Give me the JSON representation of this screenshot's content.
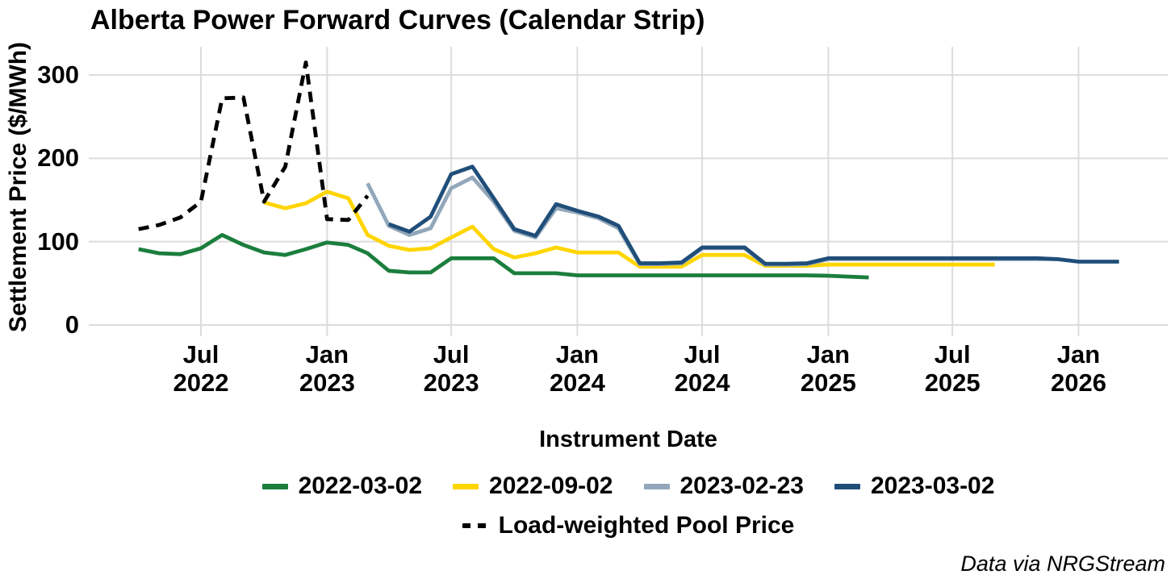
{
  "caption": "Data via NRGStream",
  "colors": {
    "background": "#ffffff",
    "grid": "#dcdcdc",
    "text": "#000000",
    "series_2022_03_02": "#1b7e3d",
    "series_2022_09_02": "#ffd500",
    "series_2023_02_23": "#92a7ba",
    "series_2023_03_02": "#1f4e79",
    "pool_price": "#000000"
  },
  "chart_data": {
    "type": "line",
    "title": "Alberta Power Forward Curves (Calendar Strip)",
    "xlabel": "Instrument Date",
    "ylabel": "Settlement Price ($/MWh)",
    "grid": true,
    "legend_position": "bottom",
    "y_axis": {
      "ticks": [
        0,
        100,
        200,
        300
      ],
      "range": [
        0,
        333
      ]
    },
    "x_axis": {
      "range": [
        "2022-04",
        "2026-04"
      ],
      "ticks": [
        {
          "date": "2022-07",
          "label": "Jul\n2022"
        },
        {
          "date": "2023-01",
          "label": "Jan\n2023"
        },
        {
          "date": "2023-07",
          "label": "Jul\n2023"
        },
        {
          "date": "2024-01",
          "label": "Jan\n2024"
        },
        {
          "date": "2024-07",
          "label": "Jul\n2024"
        },
        {
          "date": "2025-01",
          "label": "Jan\n2025"
        },
        {
          "date": "2025-07",
          "label": "Jul\n2025"
        },
        {
          "date": "2026-01",
          "label": "Jan\n2026"
        }
      ]
    },
    "legend_rows": [
      [
        "2022-03-02",
        "2022-09-02",
        "2023-02-23",
        "2023-03-02"
      ],
      [
        "Load-weighted Pool Price"
      ]
    ],
    "series": [
      {
        "name": "2022-03-02",
        "color": "#1b7e3d",
        "dash": false,
        "points": [
          [
            "2022-04",
            91
          ],
          [
            "2022-05",
            86
          ],
          [
            "2022-06",
            85
          ],
          [
            "2022-07",
            92
          ],
          [
            "2022-08",
            108
          ],
          [
            "2022-09",
            96
          ],
          [
            "2022-10",
            87
          ],
          [
            "2022-11",
            84
          ],
          [
            "2022-12",
            91
          ],
          [
            "2023-01",
            99
          ],
          [
            "2023-02",
            96
          ],
          [
            "2023-03",
            86
          ],
          [
            "2023-04",
            65
          ],
          [
            "2023-05",
            63
          ],
          [
            "2023-06",
            63
          ],
          [
            "2023-07",
            80
          ],
          [
            "2023-08",
            80
          ],
          [
            "2023-09",
            80
          ],
          [
            "2023-10",
            62
          ],
          [
            "2023-11",
            62
          ],
          [
            "2023-12",
            62
          ],
          [
            "2024-01",
            59.5
          ],
          [
            "2024-02",
            59.5
          ],
          [
            "2024-03",
            59.5
          ],
          [
            "2024-04",
            59.5
          ],
          [
            "2024-05",
            59.5
          ],
          [
            "2024-06",
            59.5
          ],
          [
            "2024-07",
            59.5
          ],
          [
            "2024-08",
            59.5
          ],
          [
            "2024-09",
            59.5
          ],
          [
            "2024-10",
            59.5
          ],
          [
            "2024-11",
            59.5
          ],
          [
            "2024-12",
            59.5
          ],
          [
            "2025-01",
            59
          ],
          [
            "2025-02",
            58
          ],
          [
            "2025-03",
            57
          ]
        ]
      },
      {
        "name": "2022-09-02",
        "color": "#ffd500",
        "dash": false,
        "points": [
          [
            "2022-10",
            147
          ],
          [
            "2022-11",
            140
          ],
          [
            "2022-12",
            146
          ],
          [
            "2023-01",
            160
          ],
          [
            "2023-02",
            152
          ],
          [
            "2023-03",
            108
          ],
          [
            "2023-04",
            95
          ],
          [
            "2023-05",
            90
          ],
          [
            "2023-06",
            92
          ],
          [
            "2023-07",
            105
          ],
          [
            "2023-08",
            118
          ],
          [
            "2023-09",
            91
          ],
          [
            "2023-10",
            81
          ],
          [
            "2023-11",
            86
          ],
          [
            "2023-12",
            93
          ],
          [
            "2024-01",
            87
          ],
          [
            "2024-02",
            87
          ],
          [
            "2024-03",
            87
          ],
          [
            "2024-04",
            70
          ],
          [
            "2024-05",
            70
          ],
          [
            "2024-06",
            70
          ],
          [
            "2024-07",
            84
          ],
          [
            "2024-08",
            84
          ],
          [
            "2024-09",
            84
          ],
          [
            "2024-10",
            71
          ],
          [
            "2024-11",
            71
          ],
          [
            "2024-12",
            71
          ],
          [
            "2025-01",
            72.5
          ],
          [
            "2025-02",
            72.5
          ],
          [
            "2025-03",
            72.5
          ],
          [
            "2025-04",
            72.5
          ],
          [
            "2025-05",
            72.5
          ],
          [
            "2025-06",
            72.5
          ],
          [
            "2025-07",
            72.5
          ],
          [
            "2025-08",
            72.5
          ],
          [
            "2025-09",
            72.5
          ]
        ]
      },
      {
        "name": "2023-02-23",
        "color": "#92a7ba",
        "dash": false,
        "points": [
          [
            "2023-03",
            170
          ],
          [
            "2023-04",
            119
          ],
          [
            "2023-05",
            108
          ],
          [
            "2023-06",
            116
          ],
          [
            "2023-07",
            164
          ],
          [
            "2023-08",
            177
          ],
          [
            "2023-09",
            148
          ],
          [
            "2023-10",
            113
          ],
          [
            "2023-11",
            105
          ],
          [
            "2023-12",
            140
          ],
          [
            "2024-01",
            135
          ],
          [
            "2024-02",
            128
          ],
          [
            "2024-03",
            116
          ],
          [
            "2024-04",
            73
          ],
          [
            "2024-05",
            73
          ],
          [
            "2024-06",
            74
          ],
          [
            "2024-07",
            92
          ],
          [
            "2024-08",
            92
          ],
          [
            "2024-09",
            92
          ],
          [
            "2024-10",
            72.5
          ],
          [
            "2024-11",
            72.5
          ],
          [
            "2024-12",
            73
          ],
          [
            "2025-01",
            79
          ],
          [
            "2025-02",
            79
          ],
          [
            "2025-03",
            79
          ],
          [
            "2025-04",
            79
          ],
          [
            "2025-05",
            79
          ],
          [
            "2025-06",
            79
          ],
          [
            "2025-07",
            79
          ],
          [
            "2025-08",
            79
          ],
          [
            "2025-09",
            79
          ],
          [
            "2025-10",
            79
          ],
          [
            "2025-11",
            79
          ],
          [
            "2025-12",
            79
          ]
        ]
      },
      {
        "name": "2023-03-02",
        "color": "#1f4e79",
        "dash": false,
        "points": [
          [
            "2023-04",
            121
          ],
          [
            "2023-05",
            112
          ],
          [
            "2023-06",
            130
          ],
          [
            "2023-07",
            181
          ],
          [
            "2023-08",
            190
          ],
          [
            "2023-09",
            152
          ],
          [
            "2023-10",
            115
          ],
          [
            "2023-11",
            107
          ],
          [
            "2023-12",
            145
          ],
          [
            "2024-01",
            137
          ],
          [
            "2024-02",
            130
          ],
          [
            "2024-03",
            119
          ],
          [
            "2024-04",
            74
          ],
          [
            "2024-05",
            74
          ],
          [
            "2024-06",
            75
          ],
          [
            "2024-07",
            93
          ],
          [
            "2024-08",
            93
          ],
          [
            "2024-09",
            93
          ],
          [
            "2024-10",
            73.5
          ],
          [
            "2024-11",
            73.5
          ],
          [
            "2024-12",
            74
          ],
          [
            "2025-01",
            80
          ],
          [
            "2025-02",
            80
          ],
          [
            "2025-03",
            80
          ],
          [
            "2025-04",
            80
          ],
          [
            "2025-05",
            80
          ],
          [
            "2025-06",
            80
          ],
          [
            "2025-07",
            80
          ],
          [
            "2025-08",
            80
          ],
          [
            "2025-09",
            80
          ],
          [
            "2025-10",
            80
          ],
          [
            "2025-11",
            80
          ],
          [
            "2025-12",
            79
          ],
          [
            "2026-01",
            76
          ],
          [
            "2026-02",
            76
          ],
          [
            "2026-03",
            76
          ]
        ]
      },
      {
        "name": "Load-weighted Pool Price",
        "color": "#000000",
        "dash": true,
        "points": [
          [
            "2022-04",
            115
          ],
          [
            "2022-05",
            120
          ],
          [
            "2022-06",
            129
          ],
          [
            "2022-07",
            148
          ],
          [
            "2022-08",
            272
          ],
          [
            "2022-09",
            273
          ],
          [
            "2022-10",
            148
          ],
          [
            "2022-11",
            190
          ],
          [
            "2022-12",
            315
          ],
          [
            "2023-01",
            127
          ],
          [
            "2023-02",
            126
          ],
          [
            "2023-03",
            155
          ]
        ]
      }
    ]
  }
}
